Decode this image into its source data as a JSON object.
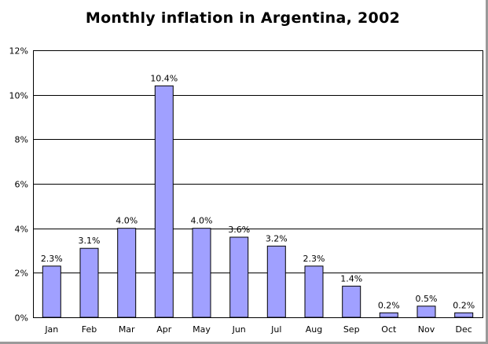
{
  "chart_data": {
    "type": "bar",
    "title": "Monthly inflation in Argentina, 2002",
    "xlabel": "",
    "ylabel": "",
    "categories": [
      "Jan",
      "Feb",
      "Mar",
      "Apr",
      "May",
      "Jun",
      "Jul",
      "Aug",
      "Sep",
      "Oct",
      "Nov",
      "Dec"
    ],
    "values": [
      2.3,
      3.1,
      4.0,
      10.4,
      4.0,
      3.6,
      3.2,
      2.3,
      1.4,
      0.2,
      0.5,
      0.2
    ],
    "data_labels": [
      "2.3%",
      "3.1%",
      "4.0%",
      "10.4%",
      "4.0%",
      "3.6%",
      "3.2%",
      "2.3%",
      "1.4%",
      "0.2%",
      "0.5%",
      "0.2%"
    ],
    "ylim": [
      0,
      12
    ],
    "yticks": [
      0,
      2,
      4,
      6,
      8,
      10,
      12
    ],
    "ytick_labels": [
      "0%",
      "2%",
      "4%",
      "6%",
      "8%",
      "10%",
      "12%"
    ],
    "grid": true,
    "legend": "none",
    "bar_color": "#a0a0ff",
    "bar_edge_color": "#000000"
  }
}
